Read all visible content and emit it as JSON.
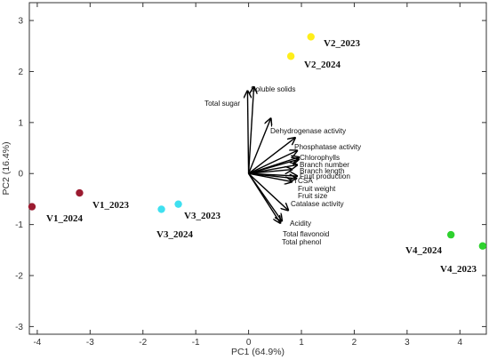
{
  "chart_data": {
    "type": "scatter",
    "title": "",
    "xlabel": "PC1 (64.9%)",
    "ylabel": "PC2 (16.4%)",
    "xlim": [
      -4.15,
      4.5
    ],
    "ylim": [
      -3.15,
      3.35
    ],
    "x_ticks": [
      -4,
      -3,
      -2,
      -1,
      0,
      1,
      2,
      3,
      4
    ],
    "y_ticks": [
      -3,
      -2,
      -1,
      0,
      1,
      2,
      3
    ],
    "grid": false,
    "points": [
      {
        "label": "V1_2023",
        "x": -3.2,
        "y": -0.38,
        "color": "#9b1b30"
      },
      {
        "label": "V1_2024",
        "x": -4.1,
        "y": -0.65,
        "color": "#9b1b30"
      },
      {
        "label": "V2_2023",
        "x": 1.18,
        "y": 2.68,
        "color": "#ffee1a"
      },
      {
        "label": "V2_2024",
        "x": 0.8,
        "y": 2.3,
        "color": "#ffee1a"
      },
      {
        "label": "V3_2023",
        "x": -1.33,
        "y": -0.6,
        "color": "#3fe0f0"
      },
      {
        "label": "V3_2024",
        "x": -1.65,
        "y": -0.7,
        "color": "#3fe0f0"
      },
      {
        "label": "V4_2023",
        "x": 4.43,
        "y": -1.42,
        "color": "#2ed12e"
      },
      {
        "label": "V4_2024",
        "x": 3.83,
        "y": -1.2,
        "color": "#2ed12e"
      }
    ],
    "loadings": [
      {
        "label": "Soluble solids",
        "x": 0.1,
        "y": 1.7
      },
      {
        "label": "Total sugar",
        "x": -0.02,
        "y": 1.62
      },
      {
        "label": "Dehydrogenase activity",
        "x": 0.42,
        "y": 1.08
      },
      {
        "label": "Phosphatase activity",
        "x": 0.88,
        "y": 0.7
      },
      {
        "label": "Chlorophylls",
        "x": 0.92,
        "y": 0.45
      },
      {
        "label": "Branch number",
        "x": 0.95,
        "y": 0.32
      },
      {
        "label": "Branch length",
        "x": 0.95,
        "y": 0.28
      },
      {
        "label": "Fruit production",
        "x": 0.92,
        "y": 0.17
      },
      {
        "label": "TCSA",
        "x": 0.82,
        "y": 0.08
      },
      {
        "label": "Fruit weight",
        "x": 0.92,
        "y": -0.05
      },
      {
        "label": "Fruit size",
        "x": 0.9,
        "y": -0.1
      },
      {
        "label": "Catalase activity",
        "x": 0.82,
        "y": -0.16
      },
      {
        "label": "Acidity",
        "x": 0.75,
        "y": -0.72
      },
      {
        "label": "Total flavonoid",
        "x": 0.63,
        "y": -0.93
      },
      {
        "label": "Total phenol",
        "x": 0.6,
        "y": -0.97
      }
    ],
    "arrow_color": "#000000"
  }
}
